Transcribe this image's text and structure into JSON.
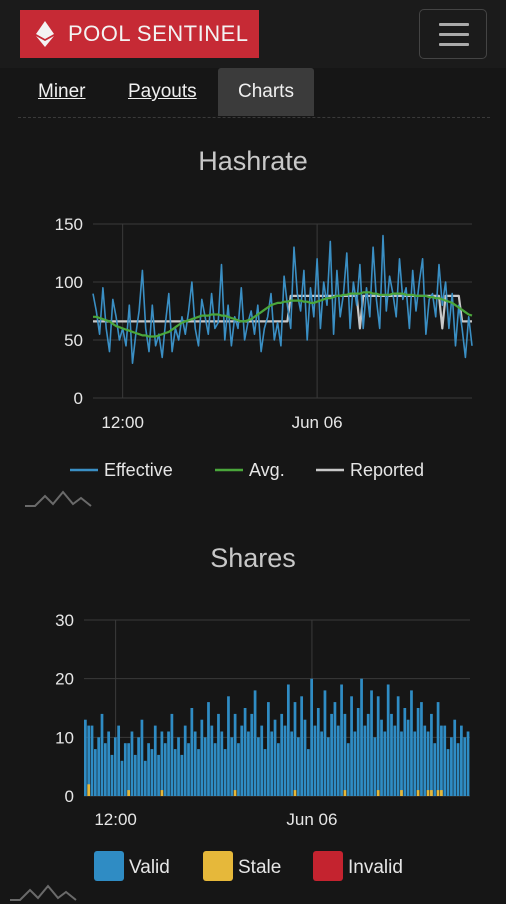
{
  "header": {
    "brand": "POOL SENTINEL",
    "brand_color": "#c62a35",
    "brand_icon": "ethereum-diamond-icon",
    "menu_icon": "hamburger-menu-icon"
  },
  "tabs": [
    {
      "label": "Miner",
      "active": false
    },
    {
      "label": "Payouts",
      "active": false
    },
    {
      "label": "Charts",
      "active": true
    }
  ],
  "hashrate_chart": {
    "title": "Hashrate",
    "chart_data": {
      "type": "line",
      "title": "Hashrate",
      "ylim": [
        0,
        150
      ],
      "y_ticks": [
        0,
        50,
        100,
        150
      ],
      "x_ticks": [
        "12:00",
        "Jun 06"
      ],
      "x_tick_index": [
        9,
        68
      ],
      "grid": true,
      "legend": "bottom",
      "series": [
        {
          "name": "Effective",
          "color": "#3a8fc4",
          "values": [
            90,
            75,
            55,
            95,
            60,
            40,
            85,
            70,
            50,
            60,
            45,
            80,
            30,
            55,
            75,
            110,
            60,
            40,
            80,
            45,
            55,
            35,
            65,
            90,
            40,
            60,
            50,
            70,
            55,
            75,
            100,
            60,
            45,
            85,
            70,
            55,
            90,
            60,
            65,
            115,
            50,
            80,
            45,
            70,
            60,
            95,
            50,
            65,
            75,
            55,
            80,
            40,
            60,
            70,
            90,
            50,
            65,
            45,
            105,
            80,
            60,
            130,
            90,
            75,
            110,
            50,
            95,
            70,
            120,
            60,
            100,
            80,
            135,
            55,
            110,
            70,
            90,
            125,
            60,
            100,
            80,
            115,
            60,
            95,
            70,
            130,
            85,
            60,
            140,
            75,
            105,
            90,
            70,
            120,
            85,
            95,
            60,
            110,
            75,
            100,
            120,
            55,
            85,
            90,
            70,
            115,
            80,
            100,
            60,
            90,
            45,
            80,
            60,
            35,
            70,
            45
          ]
        },
        {
          "name": "Avg.",
          "color": "#4aa63b",
          "values": [
            70,
            70,
            69,
            68,
            67,
            66,
            64,
            62,
            61,
            60,
            59,
            58,
            57,
            56,
            55,
            54,
            54,
            53,
            53,
            53,
            54,
            55,
            56,
            57,
            59,
            61,
            63,
            65,
            66,
            67,
            68,
            69,
            70,
            71,
            71,
            71,
            72,
            72,
            72,
            71,
            71,
            70,
            69,
            68,
            67,
            66,
            66,
            67,
            68,
            70,
            72,
            74,
            76,
            78,
            80,
            81,
            82,
            82,
            83,
            83,
            84,
            84,
            84,
            84,
            83,
            83,
            82,
            82,
            83,
            84,
            85,
            86,
            86,
            87,
            88,
            88,
            89,
            89,
            90,
            90,
            90,
            90,
            91,
            91,
            91,
            90,
            90,
            89,
            89,
            89,
            89,
            90,
            90,
            90,
            90,
            89,
            89,
            89,
            88,
            88,
            88,
            88,
            87,
            87,
            86,
            86,
            85,
            84,
            83,
            82,
            80,
            78,
            76,
            74,
            72,
            71
          ]
        },
        {
          "name": "Reported",
          "color": "#c8c8c8",
          "values": [
            66,
            66,
            66,
            66,
            66,
            66,
            66,
            66,
            66,
            66,
            66,
            66,
            66,
            66,
            66,
            66,
            66,
            66,
            66,
            66,
            66,
            66,
            66,
            66,
            66,
            66,
            66,
            66,
            66,
            66,
            66,
            66,
            66,
            66,
            66,
            66,
            66,
            66,
            66,
            66,
            66,
            66,
            66,
            66,
            66,
            66,
            66,
            66,
            66,
            66,
            66,
            66,
            66,
            66,
            66,
            66,
            66,
            66,
            66,
            66,
            88,
            88,
            88,
            88,
            88,
            88,
            88,
            88,
            88,
            88,
            88,
            88,
            88,
            88,
            88,
            88,
            88,
            88,
            88,
            88,
            88,
            60,
            88,
            88,
            88,
            88,
            88,
            88,
            88,
            88,
            88,
            88,
            88,
            88,
            88,
            88,
            88,
            88,
            88,
            88,
            88,
            88,
            88,
            88,
            88,
            88,
            60,
            88,
            88,
            88,
            88,
            88,
            66,
            66,
            66,
            66
          ]
        }
      ]
    }
  },
  "shares_chart": {
    "title": "Shares",
    "chart_data": {
      "type": "bar",
      "title": "Shares",
      "ylim": [
        0,
        30
      ],
      "y_ticks": [
        0,
        10,
        20,
        30
      ],
      "x_ticks": [
        "12:00",
        "Jun 06"
      ],
      "x_tick_index": [
        9,
        68
      ],
      "grid": true,
      "legend": "bottom",
      "stacked": true,
      "series": [
        {
          "name": "Valid",
          "color": "#2f8cc4",
          "values": [
            13,
            10,
            12,
            8,
            10,
            14,
            9,
            11,
            7,
            10,
            12,
            6,
            9,
            8,
            11,
            7,
            10,
            13,
            6,
            9,
            8,
            12,
            7,
            10,
            9,
            11,
            14,
            8,
            10,
            7,
            12,
            9,
            15,
            11,
            8,
            13,
            10,
            16,
            12,
            9,
            14,
            11,
            8,
            17,
            10,
            13,
            9,
            12,
            15,
            11,
            14,
            18,
            10,
            12,
            8,
            16,
            11,
            13,
            9,
            14,
            12,
            19,
            11,
            15,
            10,
            17,
            13,
            8,
            20,
            12,
            15,
            11,
            18,
            10,
            14,
            16,
            12,
            19,
            13,
            9,
            17,
            11,
            15,
            20,
            12,
            14,
            18,
            10,
            16,
            13,
            11,
            19,
            14,
            12,
            17,
            10,
            15,
            13,
            18,
            11,
            14,
            16,
            12,
            10,
            13,
            9,
            15,
            11,
            12,
            8,
            10,
            13,
            9,
            12,
            10,
            11
          ]
        },
        {
          "name": "Stale",
          "color": "#e6b83a",
          "values": [
            0,
            2,
            0,
            0,
            0,
            0,
            0,
            0,
            0,
            0,
            0,
            0,
            0,
            1,
            0,
            0,
            0,
            0,
            0,
            0,
            0,
            0,
            0,
            1,
            0,
            0,
            0,
            0,
            0,
            0,
            0,
            0,
            0,
            0,
            0,
            0,
            0,
            0,
            0,
            0,
            0,
            0,
            0,
            0,
            0,
            1,
            0,
            0,
            0,
            0,
            0,
            0,
            0,
            0,
            0,
            0,
            0,
            0,
            0,
            0,
            0,
            0,
            0,
            1,
            0,
            0,
            0,
            0,
            0,
            0,
            0,
            0,
            0,
            0,
            0,
            0,
            0,
            0,
            1,
            0,
            0,
            0,
            0,
            0,
            0,
            0,
            0,
            0,
            1,
            0,
            0,
            0,
            0,
            0,
            0,
            1,
            0,
            0,
            0,
            0,
            1,
            0,
            0,
            1,
            1,
            0,
            1,
            1,
            0,
            0,
            0,
            0,
            0,
            0,
            0,
            0
          ]
        },
        {
          "name": "Invalid",
          "color": "#c4232f",
          "values": []
        }
      ]
    }
  }
}
